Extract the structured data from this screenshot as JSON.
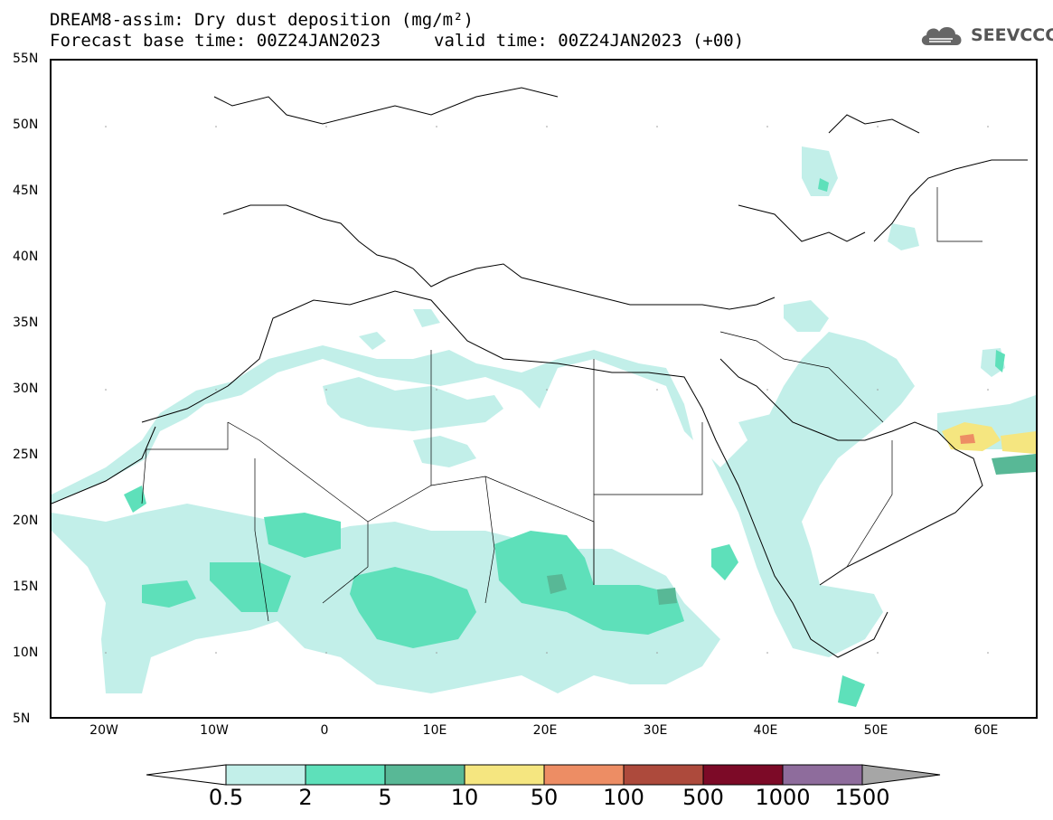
{
  "header": {
    "title": "DREAM8-assim: Dry dust deposition (mg/m²)",
    "base_time": "Forecast base time: 00Z24JAN2023",
    "valid_time": "valid time: 00Z24JAN2023 (+00)"
  },
  "logo": {
    "text": "SEEVCCC",
    "icon": "cloud-logo-icon"
  },
  "map": {
    "lat_labels": [
      "55N",
      "50N",
      "45N",
      "40N",
      "35N",
      "30N",
      "25N",
      "20N",
      "15N",
      "10N",
      "5N"
    ],
    "lon_labels": [
      "20W",
      "10W",
      "0",
      "10E",
      "20E",
      "30E",
      "40E",
      "50E",
      "60E"
    ]
  },
  "colorbar": {
    "labels": [
      "0.5",
      "2",
      "5",
      "10",
      "50",
      "100",
      "500",
      "1000",
      "1500"
    ],
    "colors": [
      "#ffffff",
      "#c2efe9",
      "#5ee0ba",
      "#58b896",
      "#f5e680",
      "#ed8d64",
      "#ad4a3c",
      "#7c0a27",
      "#8e6c9c",
      "#a6a6a6"
    ]
  }
}
